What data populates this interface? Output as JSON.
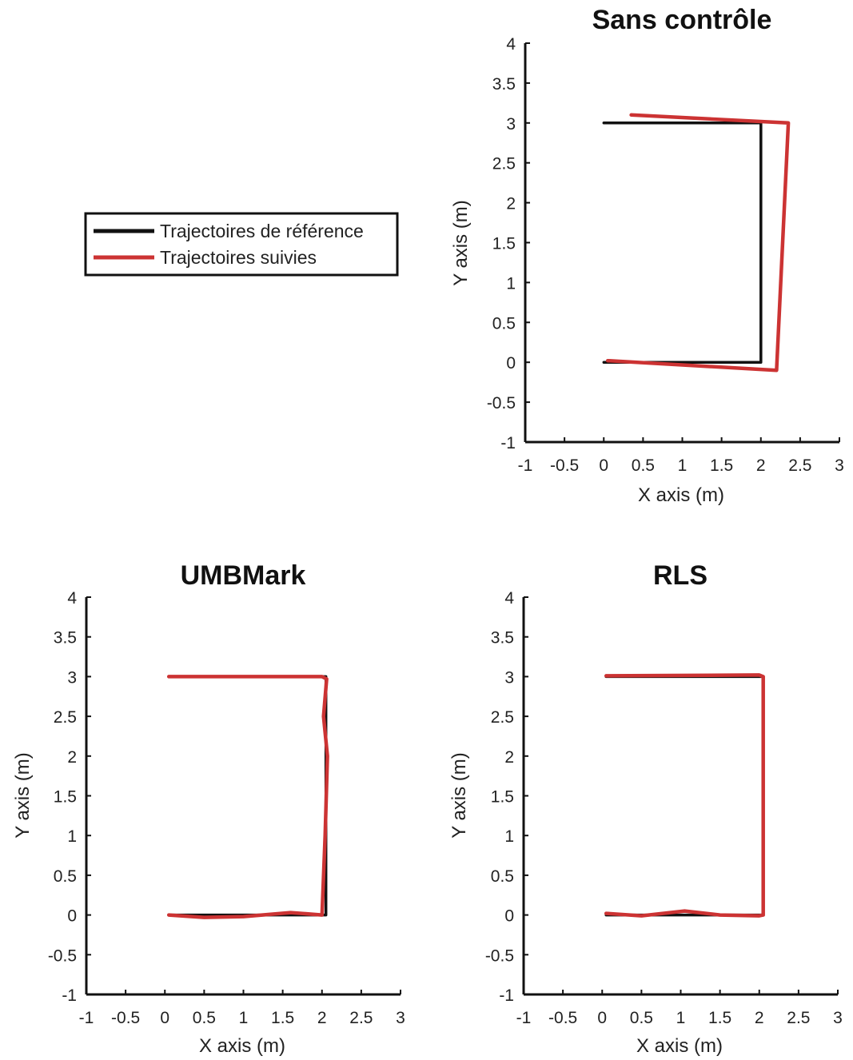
{
  "legend": {
    "entries": [
      {
        "label": "Trajectoires de référence",
        "color": "#111111"
      },
      {
        "label": "Trajectoires suivies",
        "color": "#cc3333"
      }
    ]
  },
  "chart_data": [
    {
      "type": "line",
      "title": "Sans contrôle",
      "xlabel": "X axis (m)",
      "ylabel": "Y axis (m)",
      "xlim": [
        -1,
        3
      ],
      "ylim": [
        -1,
        4
      ],
      "xticks": [
        "-1",
        "-0.5",
        "0",
        "0.5",
        "1",
        "1.5",
        "2",
        "2.5",
        "3"
      ],
      "yticks": [
        "-1",
        "-0.5",
        "0",
        "0.5",
        "1",
        "1.5",
        "2",
        "2.5",
        "3",
        "3.5",
        "4"
      ],
      "grid": false,
      "series": [
        {
          "name": "Trajectoires de référence",
          "color": "#111111",
          "x": [
            0,
            2,
            2,
            0
          ],
          "y": [
            3,
            3,
            0,
            0
          ]
        },
        {
          "name": "Trajectoires suivies",
          "color": "#cc3333",
          "x": [
            0.35,
            2.35,
            2.2,
            0.05
          ],
          "y": [
            3.1,
            3.0,
            -0.1,
            0.02
          ]
        }
      ]
    },
    {
      "type": "line",
      "title": "UMBMark",
      "xlabel": "X axis (m)",
      "ylabel": "Y axis (m)",
      "xlim": [
        -1,
        3
      ],
      "ylim": [
        -1,
        4
      ],
      "xticks": [
        "-1",
        "-0.5",
        "0",
        "0.5",
        "1",
        "1.5",
        "2",
        "2.5",
        "3"
      ],
      "yticks": [
        "-1",
        "-0.5",
        "0",
        "0.5",
        "1",
        "1.5",
        "2",
        "2.5",
        "3",
        "3.5",
        "4"
      ],
      "grid": false,
      "series": [
        {
          "name": "Trajectoires de référence",
          "color": "#111111",
          "x": [
            0.05,
            2.05,
            2.05,
            0.05
          ],
          "y": [
            3,
            3,
            0,
            0
          ]
        },
        {
          "name": "Trajectoires suivies",
          "color": "#cc3333",
          "x": [
            0.05,
            2.0,
            2.06,
            2.02,
            2.07,
            2.04,
            2.0,
            1.6,
            1.0,
            0.5,
            0.05
          ],
          "y": [
            3.0,
            3.0,
            2.97,
            2.5,
            2.0,
            1.0,
            0.0,
            0.03,
            -0.02,
            -0.03,
            0.0
          ]
        }
      ]
    },
    {
      "type": "line",
      "title": "RLS",
      "xlabel": "X axis (m)",
      "ylabel": "Y axis (m)",
      "xlim": [
        -1,
        3
      ],
      "ylim": [
        -1,
        4
      ],
      "xticks": [
        "-1",
        "-0.5",
        "0",
        "0.5",
        "1",
        "1.5",
        "2",
        "2.5",
        "3"
      ],
      "yticks": [
        "-1",
        "-0.5",
        "0",
        "0.5",
        "1",
        "1.5",
        "2",
        "2.5",
        "3",
        "3.5",
        "4"
      ],
      "grid": false,
      "series": [
        {
          "name": "Trajectoires de référence",
          "color": "#111111",
          "x": [
            0.05,
            2.05,
            2.05,
            0.05
          ],
          "y": [
            3,
            3,
            0,
            0
          ]
        },
        {
          "name": "Trajectoires suivies",
          "color": "#cc3333",
          "x": [
            0.05,
            2.0,
            2.05,
            2.05,
            2.0,
            1.5,
            1.05,
            0.5,
            0.05
          ],
          "y": [
            3.01,
            3.02,
            3.0,
            0.0,
            -0.01,
            0.0,
            0.05,
            -0.01,
            0.02
          ]
        }
      ]
    }
  ]
}
